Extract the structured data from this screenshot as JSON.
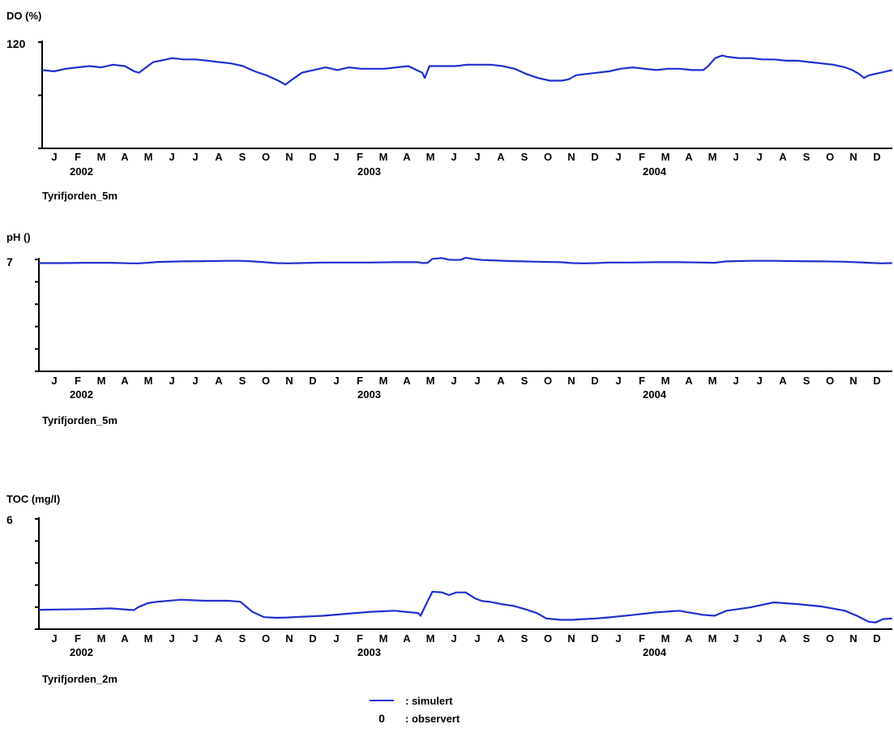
{
  "months": [
    "J",
    "F",
    "M",
    "A",
    "M",
    "J",
    "J",
    "A",
    "S",
    "O",
    "N",
    "D",
    "J",
    "F",
    "M",
    "A",
    "M",
    "J",
    "J",
    "A",
    "S",
    "O",
    "N",
    "D",
    "J",
    "F",
    "M",
    "A",
    "M",
    "J",
    "J",
    "A",
    "S",
    "O",
    "N",
    "D"
  ],
  "years": [
    "2002",
    "2003",
    "2004"
  ],
  "legend": {
    "simulated": ": simulert",
    "observed_symbol": "0",
    "observed": ": observert"
  },
  "colors": {
    "series": "#1f2fd0",
    "axis": "#000000"
  },
  "chart_data": [
    {
      "type": "line",
      "title": "DO (%)",
      "station": "Tyrifjorden_5m",
      "ytick_top_label": "120",
      "ylim": [
        40,
        120
      ],
      "xlim": [
        0,
        36
      ],
      "x_unit": "months since Jan 2002",
      "series": [
        {
          "name": "simulert",
          "x": [
            0,
            0.5,
            1,
            1.5,
            2,
            2.5,
            3,
            3.5,
            3.9,
            4.1,
            4.4,
            4.7,
            5,
            5.5,
            6,
            6.5,
            7,
            7.5,
            8,
            8.5,
            9,
            9.5,
            10,
            10.3,
            10.6,
            11,
            11.5,
            12,
            12.5,
            13,
            13.5,
            14,
            14.5,
            15,
            15.5,
            16.1,
            16.2,
            16.4,
            16.5,
            17,
            17.5,
            18,
            18.5,
            19,
            19.5,
            20,
            20.5,
            21,
            21.5,
            22,
            22.3,
            22.6,
            23,
            23.5,
            24,
            24.5,
            25,
            25.5,
            26,
            26.5,
            27,
            27.5,
            28,
            28.2,
            28.5,
            28.8,
            29,
            29.5,
            30,
            30.5,
            31,
            31.5,
            32,
            32.5,
            33,
            33.5,
            34,
            34.3,
            34.6,
            34.8,
            35,
            35.5,
            35.99
          ],
          "y": [
            99,
            98,
            100,
            101,
            102,
            101,
            103,
            102,
            98,
            97,
            101,
            105,
            106,
            108,
            107,
            107,
            106,
            105,
            104,
            102,
            98,
            95,
            91,
            88,
            92,
            97,
            99,
            101,
            99,
            101,
            100,
            100,
            100,
            101,
            102,
            97,
            93,
            102,
            102,
            102,
            102,
            103,
            103,
            103,
            102,
            100,
            96,
            93,
            91,
            91,
            92,
            95,
            96,
            97,
            98,
            100,
            101,
            100,
            99,
            100,
            100,
            99,
            99,
            102,
            108,
            110,
            109,
            108,
            108,
            107,
            107,
            106,
            106,
            105,
            104,
            103,
            101,
            99,
            96,
            93,
            95,
            97,
            99
          ]
        }
      ]
    },
    {
      "type": "line",
      "title": "pH ()",
      "station": "Tyrifjorden_5m",
      "ytick_top_label": "7",
      "ylim": [
        3,
        7
      ],
      "xlim": [
        0,
        36
      ],
      "x_unit": "months since Jan 2002",
      "series": [
        {
          "name": "simulert",
          "x": [
            0,
            1,
            2,
            3,
            3.9,
            4.2,
            4.6,
            5,
            6,
            7,
            8,
            8.5,
            9,
            9.5,
            10,
            10.5,
            11,
            12,
            13,
            14,
            15,
            16,
            16.2,
            16.4,
            16.6,
            17,
            17.3,
            17.6,
            17.8,
            18,
            18.3,
            18.7,
            19,
            20,
            21,
            22,
            22.5,
            23,
            23.5,
            24,
            25,
            26,
            27,
            28,
            28.5,
            29,
            30,
            31,
            32,
            33,
            34,
            35,
            35.5,
            35.99
          ],
          "y": [
            6.87,
            6.87,
            6.88,
            6.88,
            6.86,
            6.86,
            6.88,
            6.91,
            6.93,
            6.94,
            6.95,
            6.95,
            6.93,
            6.9,
            6.87,
            6.86,
            6.87,
            6.89,
            6.89,
            6.89,
            6.9,
            6.9,
            6.87,
            6.88,
            7.02,
            7.05,
            6.99,
            6.98,
            6.99,
            7.06,
            7.02,
            6.98,
            6.97,
            6.94,
            6.92,
            6.9,
            6.87,
            6.86,
            6.87,
            6.89,
            6.89,
            6.9,
            6.9,
            6.89,
            6.88,
            6.93,
            6.95,
            6.95,
            6.94,
            6.93,
            6.92,
            6.88,
            6.86,
            6.87
          ]
        }
      ]
    },
    {
      "type": "line",
      "title": "TOC (mg/l)",
      "station": "Tyrifjorden_2m",
      "ytick_top_label": "6",
      "ylim": [
        2.7,
        6
      ],
      "xlim": [
        0,
        36
      ],
      "x_unit": "months since Jan 2002",
      "series": [
        {
          "name": "simulert",
          "x": [
            0,
            1,
            2,
            3,
            4,
            4.2,
            4.6,
            5,
            6,
            7,
            8,
            8.5,
            9,
            9.5,
            10,
            10.5,
            11,
            12,
            13,
            14,
            15,
            16,
            16.1,
            16.3,
            16.6,
            17,
            17.3,
            17.6,
            18,
            18.4,
            18.7,
            19,
            19.5,
            20,
            20.5,
            21,
            21.4,
            22,
            22.5,
            23,
            23.5,
            24,
            25,
            26,
            27,
            28,
            28.5,
            29,
            30,
            31,
            32,
            33,
            34,
            34.5,
            35,
            35.3,
            35.6,
            35.99
          ],
          "y": [
            3.28,
            3.29,
            3.3,
            3.32,
            3.27,
            3.36,
            3.48,
            3.52,
            3.58,
            3.55,
            3.55,
            3.52,
            3.22,
            3.06,
            3.04,
            3.05,
            3.07,
            3.1,
            3.16,
            3.22,
            3.25,
            3.18,
            3.1,
            3.4,
            3.82,
            3.8,
            3.72,
            3.8,
            3.8,
            3.62,
            3.54,
            3.52,
            3.45,
            3.4,
            3.3,
            3.18,
            3.02,
            2.98,
            2.98,
            3.0,
            3.02,
            3.05,
            3.12,
            3.2,
            3.25,
            3.13,
            3.1,
            3.25,
            3.35,
            3.5,
            3.45,
            3.38,
            3.25,
            3.1,
            2.92,
            2.9,
            3.0,
            3.02
          ]
        }
      ]
    }
  ]
}
